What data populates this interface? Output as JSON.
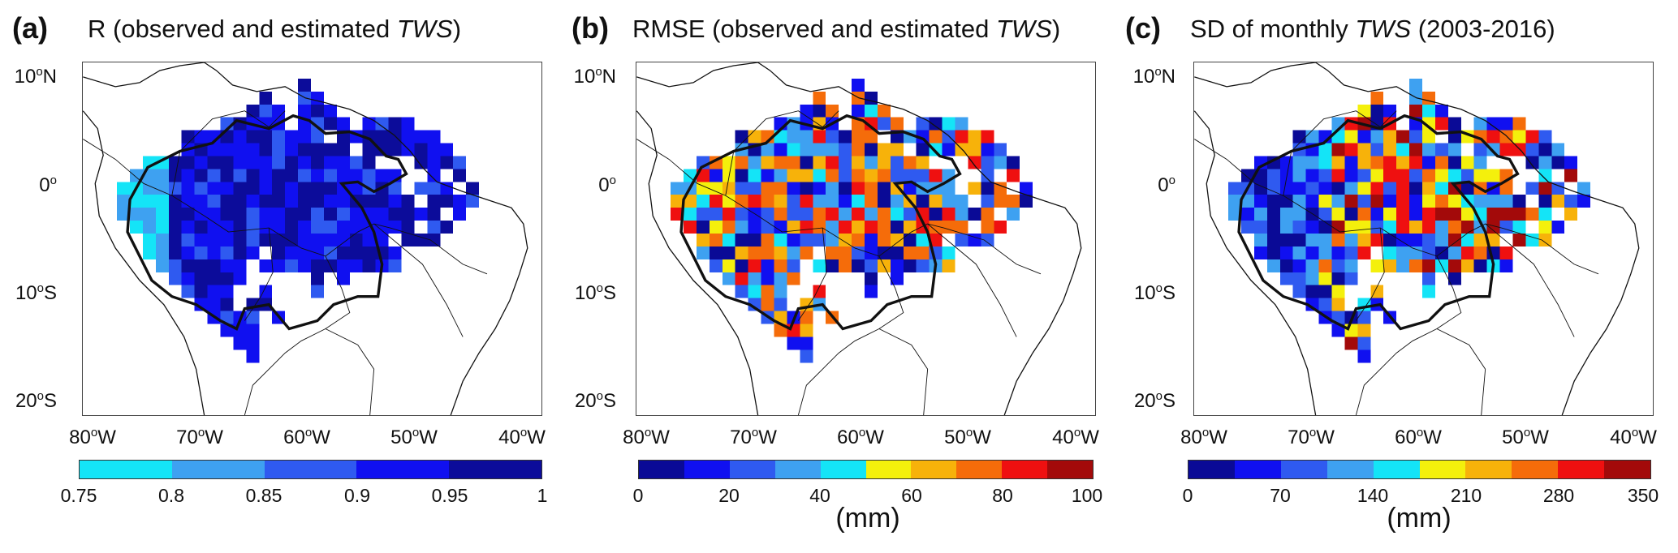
{
  "panels": [
    {
      "label": "(a)",
      "title_pre": "R (observed and estimated ",
      "title_it": "TWS",
      "title_post": ")",
      "colors": [
        "#14e4f7",
        "#3ea1f1",
        "#2f5af0",
        "#1010f0",
        "#0c0c9a"
      ],
      "ticks": [
        "0.75",
        "0.8",
        "0.85",
        "0.9",
        "0.95",
        "1"
      ],
      "unit": ""
    },
    {
      "label": "(b)",
      "title_pre": "RMSE (observed and estimated ",
      "title_it": "TWS",
      "title_post": ")",
      "colors": [
        "#0a0a96",
        "#1010f0",
        "#2f5af0",
        "#3ea1f1",
        "#14e4f7",
        "#f4f00c",
        "#f7b20a",
        "#f56c0a",
        "#ef1010",
        "#a30a0a"
      ],
      "ticks": [
        "0",
        "20",
        "40",
        "60",
        "80",
        "100"
      ],
      "unit": "(mm)"
    },
    {
      "label": "(c)",
      "title_pre": "SD of monthly ",
      "title_it": "TWS",
      "title_post": " (2003-2016)",
      "colors": [
        "#0a0a96",
        "#1010f0",
        "#2f5af0",
        "#3ea1f1",
        "#14e4f7",
        "#f4f00c",
        "#f7b20a",
        "#f56c0a",
        "#ef1010",
        "#a30a0a"
      ],
      "ticks": [
        "0",
        "70",
        "140",
        "210",
        "280",
        "350"
      ],
      "unit": "(mm)"
    }
  ],
  "lat_labels": [
    "10°N",
    "0°",
    "10°S",
    "20°S"
  ],
  "lon_labels": [
    "80°W",
    "70°W",
    "60°W",
    "50°W",
    "40°W"
  ]
}
